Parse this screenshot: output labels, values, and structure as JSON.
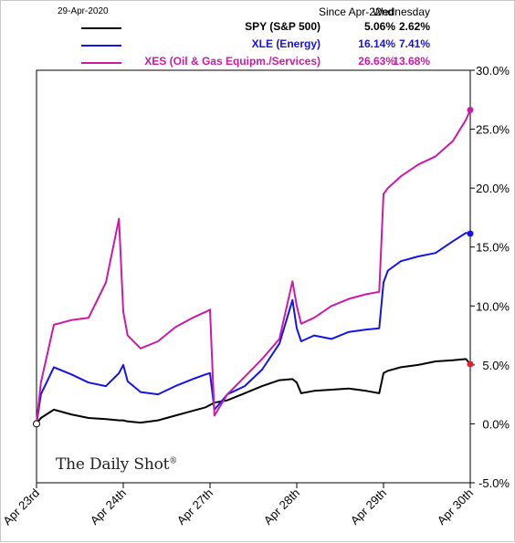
{
  "header": {
    "date": "29-Apr-2020",
    "col1": "Since Apr-22nd",
    "col2": "Wednesday"
  },
  "legend": [
    {
      "name": "SPY (S&P 500)",
      "since": "5.06%",
      "day": "2.62%",
      "color": "#000000"
    },
    {
      "name": "XLE (Energy)",
      "since": "16.14%",
      "day": "7.41%",
      "color": "#1414e6"
    },
    {
      "name": "XES (Oil & Gas Equipm./Services)",
      "since": "26.63%",
      "day": "13.68%",
      "color": "#cc1aa6"
    }
  ],
  "branding": {
    "logo": "The Daily Shot"
  },
  "chart_data": {
    "type": "line",
    "ylim": [
      -5,
      30
    ],
    "yticks": [
      "30.0%",
      "25.0%",
      "20.0%",
      "15.0%",
      "10.0%",
      "5.0%",
      "0.0%",
      "-5.0%"
    ],
    "yaxis_position": "right",
    "x_categories": [
      "Apr 23rd",
      "Apr 24th",
      "Apr 27th",
      "Apr 28th",
      "Apr 29th",
      "Apr 30th"
    ],
    "x": [
      0,
      0.05,
      0.2,
      0.4,
      0.6,
      0.8,
      0.95,
      1,
      1.05,
      1.2,
      1.4,
      1.6,
      1.8,
      1.95,
      2,
      2.05,
      2.2,
      2.4,
      2.6,
      2.8,
      2.95,
      3,
      3.05,
      3.2,
      3.4,
      3.6,
      3.8,
      3.95,
      4,
      4.05,
      4.2,
      4.4,
      4.6,
      4.8,
      4.95,
      5
    ],
    "series": [
      {
        "name": "SPY (S&P 500)",
        "color": "#000000",
        "values": [
          0,
          0.5,
          1.2,
          0.8,
          0.5,
          0.4,
          0.3,
          0.3,
          0.2,
          0.1,
          0.3,
          0.7,
          1.1,
          1.4,
          1.6,
          1.8,
          2.0,
          2.6,
          3.2,
          3.7,
          3.8,
          3.5,
          2.6,
          2.8,
          2.9,
          3.0,
          2.8,
          2.6,
          4.3,
          4.5,
          4.8,
          5.0,
          5.3,
          5.4,
          5.5,
          5.06
        ]
      },
      {
        "name": "XLE (Energy)",
        "color": "#1414e6",
        "values": [
          0,
          2.5,
          4.8,
          4.2,
          3.5,
          3.2,
          4.3,
          5.0,
          3.6,
          2.7,
          2.5,
          3.2,
          3.8,
          4.2,
          4.3,
          1.2,
          2.5,
          3.2,
          4.6,
          6.8,
          10.5,
          8.1,
          7.0,
          7.5,
          7.2,
          7.8,
          8.0,
          8.1,
          12.0,
          13.0,
          13.8,
          14.2,
          14.5,
          15.5,
          16.2,
          16.14
        ]
      },
      {
        "name": "XES (Oil & Gas Equipm./Services)",
        "color": "#cc1aa6",
        "values": [
          0,
          3.5,
          8.4,
          8.8,
          9.0,
          12.0,
          17.4,
          9.5,
          7.5,
          6.4,
          7.0,
          8.2,
          9.0,
          9.5,
          9.7,
          0.7,
          2.5,
          4.0,
          5.5,
          7.2,
          12.1,
          10.0,
          8.5,
          9.0,
          10.0,
          10.6,
          11.0,
          11.2,
          19.5,
          20.0,
          21.0,
          22.0,
          22.7,
          24.0,
          25.8,
          26.63
        ]
      }
    ]
  }
}
